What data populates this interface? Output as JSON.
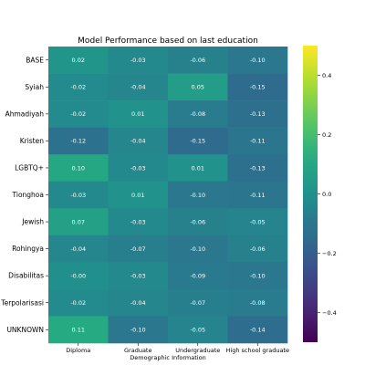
{
  "chart_data": {
    "type": "heatmap",
    "title": "Model Performance based on last education",
    "xlabel": "Demographic Information",
    "ylabel": "",
    "x_categories": [
      "Diploma",
      "Graduate",
      "Undergraduate",
      "High school graduate"
    ],
    "y_categories": [
      "BASE",
      "Syiah",
      "Ahmadiyah",
      "Kristen",
      "LGBTQ+",
      "Tionghoa",
      "Jewish",
      "Rohingya",
      "Disabilitas",
      "Terpolarisasi",
      "UNKNOWN"
    ],
    "values": [
      [
        0.02,
        -0.03,
        -0.06,
        -0.1
      ],
      [
        -0.02,
        -0.04,
        0.05,
        -0.15
      ],
      [
        -0.02,
        0.01,
        -0.08,
        -0.13
      ],
      [
        -0.12,
        -0.04,
        -0.15,
        -0.11
      ],
      [
        0.1,
        -0.03,
        0.01,
        -0.13
      ],
      [
        -0.03,
        0.01,
        -0.1,
        -0.11
      ],
      [
        0.07,
        -0.03,
        -0.06,
        -0.05
      ],
      [
        -0.04,
        -0.07,
        -0.1,
        -0.06
      ],
      [
        -0.0,
        -0.03,
        -0.09,
        -0.1
      ],
      [
        -0.02,
        -0.04,
        -0.07,
        -0.08
      ],
      [
        0.11,
        -0.1,
        -0.05,
        -0.14
      ]
    ],
    "value_labels": [
      [
        "0.02",
        "-0.03",
        "-0.06",
        "-0.10"
      ],
      [
        "-0.02",
        "-0.04",
        "0.05",
        "-0.15"
      ],
      [
        "-0.02",
        "0.01",
        "-0.08",
        "-0.13"
      ],
      [
        "-0.12",
        "-0.04",
        "-0.15",
        "-0.11"
      ],
      [
        "0.10",
        "-0.03",
        "0.01",
        "-0.13"
      ],
      [
        "-0.03",
        "0.01",
        "-0.10",
        "-0.11"
      ],
      [
        "0.07",
        "-0.03",
        "-0.06",
        "-0.05"
      ],
      [
        "-0.04",
        "-0.07",
        "-0.10",
        "-0.06"
      ],
      [
        "-0.00",
        "-0.03",
        "-0.09",
        "-0.10"
      ],
      [
        "-0.02",
        "-0.04",
        "-0.07",
        "-0.08"
      ],
      [
        "0.11",
        "-0.10",
        "-0.05",
        "-0.14"
      ]
    ],
    "colormap": "viridis",
    "vmin": -0.5,
    "vmax": 0.5,
    "colorbar_ticks": [
      0.4,
      0.2,
      0.0,
      -0.2,
      -0.4
    ],
    "colorbar_tick_labels": [
      "0.4",
      "0.2",
      "0.0",
      "−0.2",
      "−0.4"
    ]
  }
}
